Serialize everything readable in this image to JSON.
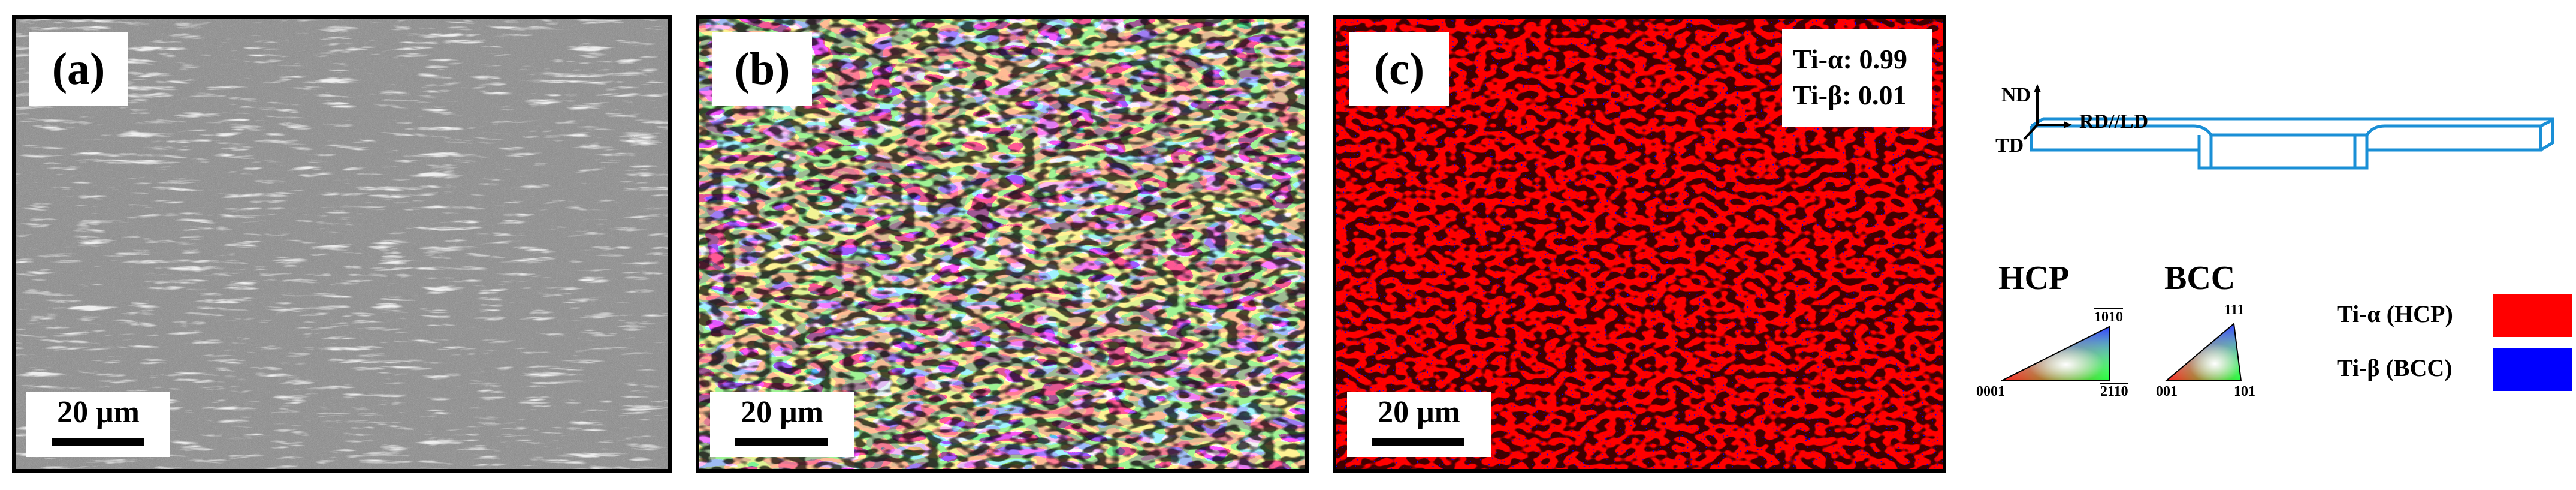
{
  "panels": [
    {
      "label": "(a)",
      "scale_bar": "20 μm"
    },
    {
      "label": "(b)",
      "scale_bar": "20 μm"
    },
    {
      "label": "(c)",
      "scale_bar": "20 μm",
      "phase_fractions": [
        "Ti-α: 0.99",
        "Ti-β: 0.01"
      ]
    }
  ],
  "sample_axes": {
    "nd": "ND",
    "rd": "RD//LD",
    "td": "TD"
  },
  "ipf_legends": [
    {
      "title": "HCP",
      "labels": [
        "0001",
        "2110",
        "1010"
      ],
      "overline_note": "2 1 1̄ 0 / 1 0 1̄ 0"
    },
    {
      "title": "BCC",
      "labels": [
        "001",
        "101",
        "111"
      ]
    }
  ],
  "phase_legend": [
    {
      "name": "Ti-α (HCP)",
      "color": "#ff0000"
    },
    {
      "name": "Ti-β (BCC)",
      "color": "#0000ff"
    }
  ],
  "colors": {
    "sem_gray": "#8a8a8a",
    "alpha_red": "#ff0000",
    "beta_blue": "#0000ff",
    "grain_boundary": "#000000"
  }
}
